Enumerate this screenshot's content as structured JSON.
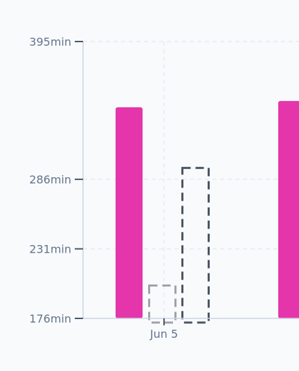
{
  "chart_data": {
    "type": "bar",
    "categories": [
      "Jun 5"
    ],
    "x_tick_labels": [
      "Jun 5"
    ],
    "y_tick_labels": [
      "395min",
      "286min",
      "231min",
      "176min"
    ],
    "y_ticks": [
      395,
      286,
      231,
      176
    ],
    "ylim": [
      176,
      395
    ],
    "unit": "min",
    "grid": true,
    "legend": "none",
    "series": [
      {
        "style": "solid",
        "color": "#e535ab",
        "values": [
          343
        ]
      },
      {
        "style": "dashed",
        "color": "#a1a1aa",
        "values": [
          202
        ]
      },
      {
        "style": "dashed",
        "color": "#4b5563",
        "values": [
          295
        ]
      },
      {
        "style": "solid",
        "color": "#e535ab",
        "values": [
          348
        ],
        "note_visible": "partially cropped at right edge"
      }
    ]
  }
}
